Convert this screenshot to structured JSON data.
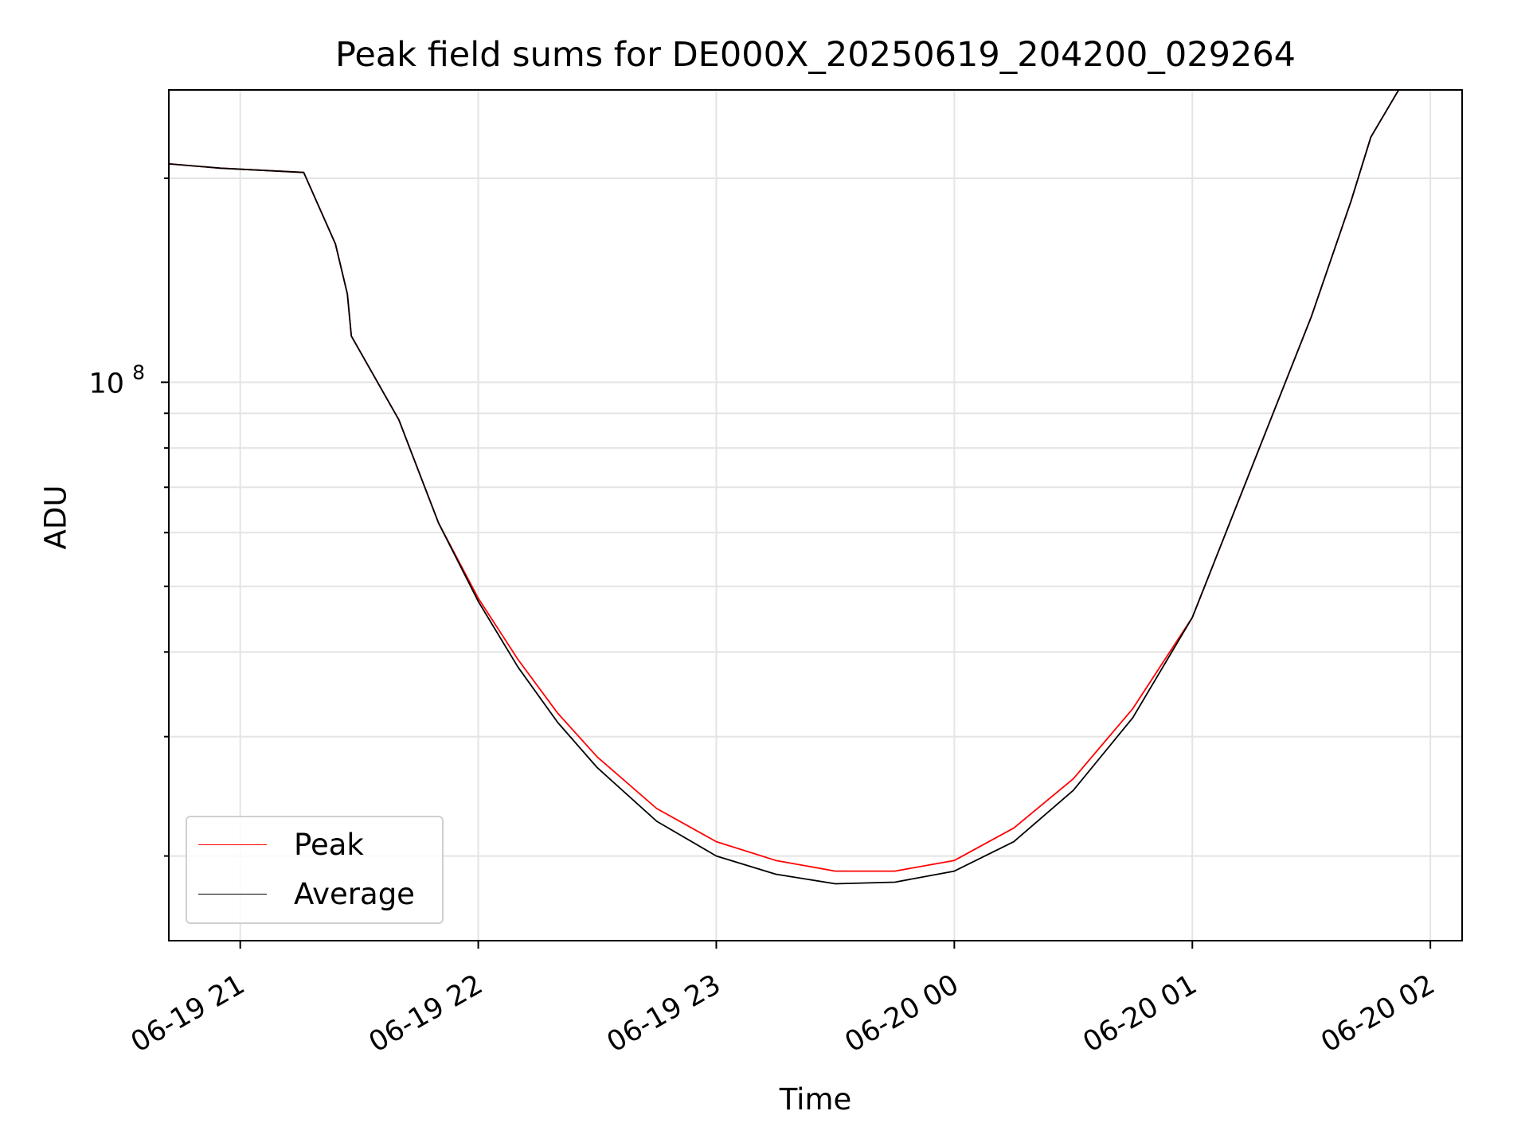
{
  "chart_data": {
    "type": "line",
    "title": "Peak field sums for DE000X_20250619_204200_029264",
    "xlabel": "Time",
    "ylabel": "ADU",
    "yscale": "log",
    "grid": true,
    "legend_position": "lower-left",
    "x_range": [
      "2025-06-19 20:42",
      "2025-06-20 02:08"
    ],
    "ylim": [
      15000000.0,
      270000000.0
    ],
    "x_ticks": [
      "06-19 21",
      "06-19 22",
      "06-19 23",
      "06-20 00",
      "06-20 01",
      "06-20 02"
    ],
    "y_tick_label": "10^8",
    "colors": {
      "Peak": "#ff0000",
      "Average": "#000000"
    },
    "series": [
      {
        "name": "Peak",
        "points": [
          [
            "2025-06-19 20:42",
            210000000.0
          ],
          [
            "2025-06-19 20:55",
            207000000.0
          ],
          [
            "2025-06-19 21:16",
            204000000.0
          ],
          [
            "2025-06-19 21:24",
            160000000.0
          ],
          [
            "2025-06-19 21:27",
            135000000.0
          ],
          [
            "2025-06-19 21:28",
            117000000.0
          ],
          [
            "2025-06-19 21:40",
            88000000.0
          ],
          [
            "2025-06-19 21:50",
            62000000.0
          ],
          [
            "2025-06-19 22:00",
            48000000.0
          ],
          [
            "2025-06-19 22:10",
            39000000.0
          ],
          [
            "2025-06-19 22:20",
            32500000.0
          ],
          [
            "2025-06-19 22:30",
            28000000.0
          ],
          [
            "2025-06-19 22:45",
            23500000.0
          ],
          [
            "2025-06-19 23:00",
            21000000.0
          ],
          [
            "2025-06-19 23:15",
            19700000.0
          ],
          [
            "2025-06-19 23:30",
            19000000.0
          ],
          [
            "2025-06-19 23:45",
            19000000.0
          ],
          [
            "2025-06-20 00:00",
            19700000.0
          ],
          [
            "2025-06-20 00:15",
            22000000.0
          ],
          [
            "2025-06-20 00:30",
            26000000.0
          ],
          [
            "2025-06-20 00:45",
            33000000.0
          ],
          [
            "2025-06-20 01:00",
            45000000.0
          ],
          [
            "2025-06-20 01:15",
            75000000.0
          ],
          [
            "2025-06-20 01:30",
            125000000.0
          ],
          [
            "2025-06-20 01:40",
            185000000.0
          ],
          [
            "2025-06-20 01:45",
            230000000.0
          ],
          [
            "2025-06-20 01:52",
            270000000.0
          ],
          [
            "2025-06-20 02:00",
            270000000.0
          ]
        ]
      },
      {
        "name": "Average",
        "points": [
          [
            "2025-06-19 20:42",
            210000000.0
          ],
          [
            "2025-06-19 20:55",
            207000000.0
          ],
          [
            "2025-06-19 21:16",
            204000000.0
          ],
          [
            "2025-06-19 21:24",
            160000000.0
          ],
          [
            "2025-06-19 21:27",
            135000000.0
          ],
          [
            "2025-06-19 21:28",
            117000000.0
          ],
          [
            "2025-06-19 21:40",
            88000000.0
          ],
          [
            "2025-06-19 21:50",
            62000000.0
          ],
          [
            "2025-06-19 22:00",
            47500000.0
          ],
          [
            "2025-06-19 22:10",
            38000000.0
          ],
          [
            "2025-06-19 22:20",
            31500000.0
          ],
          [
            "2025-06-19 22:30",
            27000000.0
          ],
          [
            "2025-06-19 22:45",
            22500000.0
          ],
          [
            "2025-06-19 23:00",
            20000000.0
          ],
          [
            "2025-06-19 23:15",
            18800000.0
          ],
          [
            "2025-06-19 23:30",
            18200000.0
          ],
          [
            "2025-06-19 23:45",
            18300000.0
          ],
          [
            "2025-06-20 00:00",
            19000000.0
          ],
          [
            "2025-06-20 00:15",
            21000000.0
          ],
          [
            "2025-06-20 00:30",
            25000000.0
          ],
          [
            "2025-06-20 00:45",
            32000000.0
          ],
          [
            "2025-06-20 01:00",
            45000000.0
          ],
          [
            "2025-06-20 01:15",
            75000000.0
          ],
          [
            "2025-06-20 01:30",
            125000000.0
          ],
          [
            "2025-06-20 01:40",
            185000000.0
          ],
          [
            "2025-06-20 01:45",
            230000000.0
          ],
          [
            "2025-06-20 01:52",
            270000000.0
          ],
          [
            "2025-06-20 02:00",
            270000000.0
          ]
        ]
      }
    ]
  }
}
